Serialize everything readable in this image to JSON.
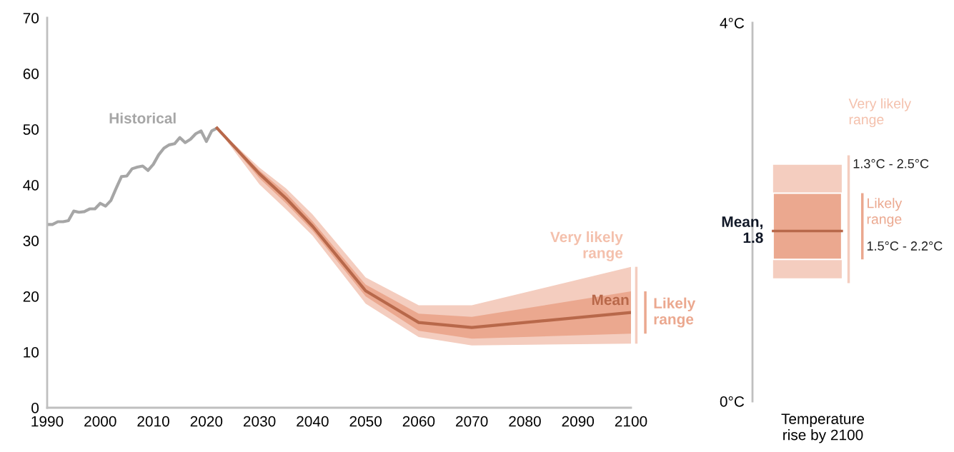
{
  "chart_data": [
    {
      "type": "line",
      "x": [
        1990,
        1991,
        1992,
        1993,
        1994,
        1995,
        1996,
        1997,
        1998,
        1999,
        2000,
        2001,
        2002,
        2003,
        2004,
        2005,
        2006,
        2007,
        2008,
        2009,
        2010,
        2011,
        2012,
        2013,
        2014,
        2015,
        2016,
        2017,
        2018,
        2019,
        2020,
        2021,
        2022
      ],
      "xlim": [
        1990,
        2100
      ],
      "xticks": [
        1990,
        2000,
        2010,
        2020,
        2030,
        2040,
        2050,
        2060,
        2070,
        2080,
        2090,
        2100
      ],
      "ylim": [
        0,
        70
      ],
      "yticks": [
        0,
        10,
        20,
        30,
        40,
        50,
        60,
        70
      ],
      "grid": false,
      "legend": false,
      "series": [
        {
          "name": "Historical",
          "color": "#a6a6a6",
          "values": [
            32.9,
            32.9,
            33.4,
            33.4,
            33.6,
            35.3,
            35.1,
            35.2,
            35.7,
            35.7,
            36.7,
            36.2,
            37.2,
            39.4,
            41.5,
            41.6,
            42.9,
            43.2,
            43.4,
            42.6,
            43.7,
            45.4,
            46.6,
            47.2,
            47.4,
            48.5,
            47.6,
            48.2,
            49.2,
            49.7,
            47.8,
            49.7,
            50.2
          ]
        },
        {
          "name": "Very likely range",
          "type": "area",
          "color": "#f4cdbf",
          "x": [
            2022,
            2030,
            2035,
            2040,
            2050,
            2060,
            2070,
            2100
          ],
          "values": [
            null,
            null,
            null,
            null,
            null,
            null,
            null,
            null
          ],
          "lower": [
            50.2,
            40.1,
            35.6,
            30.9,
            18.7,
            12.7,
            11.2,
            11.5
          ],
          "upper": [
            50.2,
            43.1,
            39.4,
            34.7,
            23.4,
            18.4,
            18.4,
            25.3
          ]
        },
        {
          "name": "Likely range",
          "type": "area",
          "color": "#eba88f",
          "x": [
            2022,
            2030,
            2035,
            2040,
            2050,
            2060,
            2070,
            2100
          ],
          "values": [
            null,
            null,
            null,
            null,
            null,
            null,
            null,
            null
          ],
          "lower": [
            50.2,
            41.2,
            36.7,
            31.8,
            20.0,
            13.8,
            12.4,
            13.3
          ],
          "upper": [
            50.2,
            42.6,
            38.6,
            33.5,
            22.1,
            16.9,
            16.3,
            20.9
          ]
        },
        {
          "name": "Mean",
          "color": "#b8684a",
          "x": [
            2022,
            2030,
            2035,
            2040,
            2050,
            2060,
            2070,
            2100
          ],
          "values": [
            50.2,
            42.0,
            37.6,
            32.6,
            21.0,
            15.3,
            14.4,
            17.1
          ]
        }
      ]
    },
    {
      "type": "bar",
      "categories": [
        null
      ],
      "xlabel": "Temperature rise by 2100",
      "ylim": [
        0,
        4
      ],
      "yticks": [
        {
          "value": 0,
          "label": "0°C"
        },
        {
          "value": 4,
          "label": "4°C"
        }
      ],
      "grid": false,
      "legend": false,
      "series": [
        {
          "name": "Very likely range",
          "color": "#f4cdbf",
          "values": [
            1.2
          ],
          "base": [
            1.3
          ]
        },
        {
          "name": "Likely range",
          "color": "#eba88f",
          "values": [
            0.7
          ],
          "base": [
            1.5
          ]
        }
      ],
      "annotations": [
        "1.3°C - 2.5°C",
        "1.5°C - 2.2°C"
      ],
      "ref_lines": [
        {
          "axis": "y",
          "value": 1.8,
          "label": "Mean, 1.8",
          "color": "#b8684a"
        }
      ]
    }
  ]
}
